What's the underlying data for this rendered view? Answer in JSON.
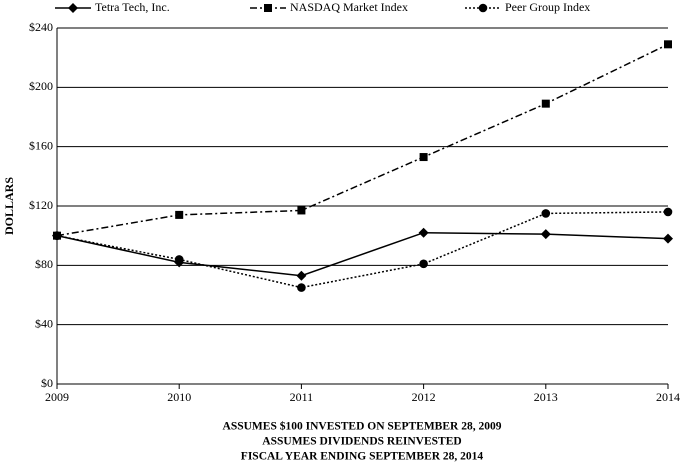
{
  "chart_data": {
    "type": "line",
    "y_label": "DOLLARS",
    "notes": [
      "ASSUMES $100 INVESTED ON SEPTEMBER 28, 2009",
      "ASSUMES DIVIDENDS REINVESTED",
      "FISCAL YEAR ENDING SEPTEMBER 28, 2014"
    ],
    "x": [
      2009,
      2010,
      2011,
      2012,
      2013,
      2014
    ],
    "xlim": [
      2009,
      2014
    ],
    "xticks": [
      2009,
      2010,
      2011,
      2012,
      2013,
      2014
    ],
    "ylim": [
      0,
      240
    ],
    "yticks": [
      {
        "value": 0,
        "label": "$0"
      },
      {
        "value": 40,
        "label": "$40"
      },
      {
        "value": 80,
        "label": "$80"
      },
      {
        "value": 120,
        "label": "$120"
      },
      {
        "value": 160,
        "label": "$160"
      },
      {
        "value": 200,
        "label": "$200"
      },
      {
        "value": 240,
        "label": "$240"
      }
    ],
    "grid": true,
    "series": [
      {
        "name": "Tetra Tech, Inc.",
        "color": "#000000",
        "dash": "solid",
        "marker": "diamond",
        "values": [
          100,
          82,
          73,
          102,
          101,
          98
        ]
      },
      {
        "name": "NASDAQ Market Index",
        "color": "#000000",
        "dash": "dashdot",
        "marker": "square",
        "values": [
          100,
          114,
          117,
          153,
          189,
          229
        ]
      },
      {
        "name": "Peer Group Index",
        "color": "#000000",
        "dash": "dotted",
        "marker": "circle",
        "values": [
          100,
          84,
          65,
          81,
          115,
          116
        ]
      }
    ]
  }
}
